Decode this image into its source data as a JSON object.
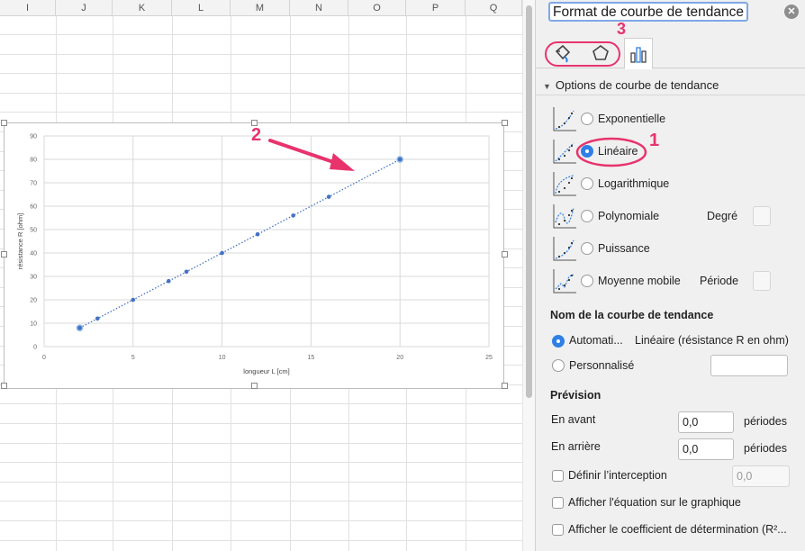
{
  "sheet": {
    "columns": [
      "I",
      "J",
      "K",
      "L",
      "M",
      "N",
      "O",
      "P",
      "Q"
    ]
  },
  "chart_data": {
    "type": "scatter",
    "title": "",
    "xlabel": "longueur L [cm]",
    "ylabel": "résistance R [ohm]",
    "xlim": [
      0,
      25
    ],
    "ylim": [
      0,
      90
    ],
    "xticks": [
      0,
      5,
      10,
      15,
      20,
      25
    ],
    "yticks": [
      0,
      10,
      20,
      30,
      40,
      50,
      60,
      70,
      80,
      90
    ],
    "grid": true,
    "series": [
      {
        "x": [
          2,
          3,
          5,
          7,
          8,
          10,
          12,
          14,
          16,
          20
        ],
        "y": [
          8,
          12,
          20,
          28,
          32,
          40,
          48,
          56,
          64,
          80
        ],
        "color": "#4472c4"
      }
    ],
    "trendline": {
      "type": "linear",
      "style": "dotted",
      "from": [
        2,
        8
      ],
      "to": [
        20,
        80
      ],
      "color": "#4472c4"
    }
  },
  "annotations": {
    "step1": "1",
    "step2": "2",
    "step3": "3",
    "color": "#e8336d"
  },
  "panel": {
    "title": "Format de courbe de tendance",
    "close_icon": "close-icon",
    "tabs": [
      "fill-line-icon",
      "effects-pentagon-icon",
      "trendline-options-icon"
    ],
    "section": "Options de courbe de tendance",
    "options": [
      {
        "label": "Exponentielle",
        "selected": false
      },
      {
        "label": "Linéaire",
        "selected": true
      },
      {
        "label": "Logarithmique",
        "selected": false
      },
      {
        "label": "Polynomiale",
        "selected": false,
        "extra_label": "Degré"
      },
      {
        "label": "Puissance",
        "selected": false
      },
      {
        "label": "Moyenne mobile",
        "selected": false,
        "extra_label": "Période"
      }
    ],
    "name_section": {
      "title": "Nom de la courbe de tendance",
      "auto_label": "Automati...",
      "auto_value": "Linéaire (résistance R en ohm)",
      "custom_label": "Personnalisé",
      "custom_value": ""
    },
    "forecast": {
      "title": "Prévision",
      "forward_label": "En avant",
      "forward_value": "0,0",
      "backward_label": "En arrière",
      "backward_value": "0,0",
      "unit": "périodes"
    },
    "intercept": {
      "label": "Définir l’interception",
      "value": "0,0"
    },
    "show_equation": "Afficher l'équation sur le graphique",
    "show_r2": "Afficher le coefficient de détermination (R²..."
  }
}
